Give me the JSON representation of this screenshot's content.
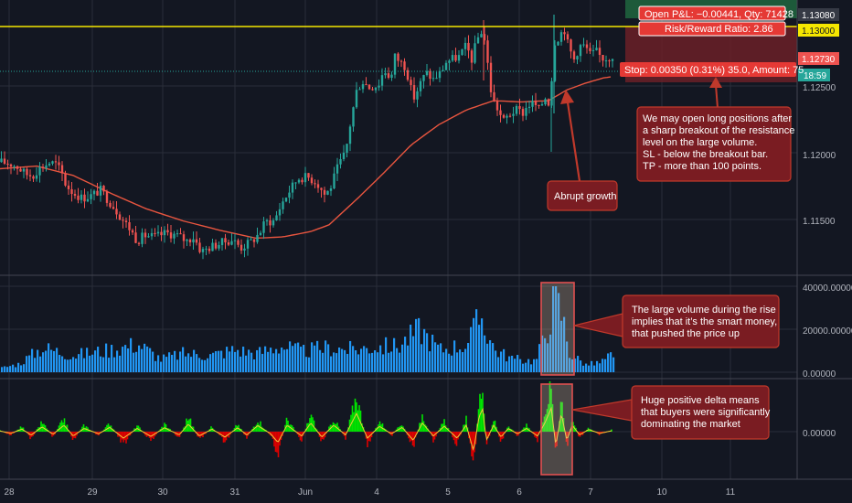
{
  "colors": {
    "background": "#131722",
    "grid": "#2a2e39",
    "up": "#26a69a",
    "down": "#ef5350",
    "ma": "#e8553f",
    "resistance": "#f5e700",
    "volume": "#2196f3",
    "delta_pos": "#00e600",
    "delta_neg": "#e00000",
    "callout_fill": "#7a1c22",
    "callout_stroke": "#c0392b"
  },
  "chart_data": [
    {
      "type": "candlestick",
      "x_labels": [
        "28",
        "29",
        "30",
        "31",
        "Jun",
        "4",
        "5",
        "6",
        "7",
        "10",
        "11"
      ],
      "y_ticks": [
        "1.12500",
        "1.12000",
        "1.11500"
      ],
      "ylim": [
        1.112,
        1.1325
      ],
      "price_labels": {
        "high": "1.13080",
        "resistance": "1.13000",
        "current": "1.12730",
        "timer": "18:59"
      },
      "resistance_level": 1.13,
      "indicator": "moving average",
      "close_path": [
        [
          0,
          1.1193
        ],
        [
          10,
          1.1192
        ],
        [
          18,
          1.119
        ],
        [
          28,
          1.1184
        ],
        [
          36,
          1.1183
        ],
        [
          42,
          1.1188
        ],
        [
          55,
          1.1193
        ],
        [
          62,
          1.1191
        ],
        [
          68,
          1.1184
        ],
        [
          72,
          1.1176
        ],
        [
          80,
          1.117
        ],
        [
          90,
          1.1166
        ],
        [
          100,
          1.1168
        ],
        [
          110,
          1.1172
        ],
        [
          118,
          1.1165
        ],
        [
          126,
          1.1158
        ],
        [
          134,
          1.115
        ],
        [
          142,
          1.1143
        ],
        [
          150,
          1.1134
        ],
        [
          158,
          1.1138
        ],
        [
          170,
          1.1137
        ],
        [
          182,
          1.114
        ],
        [
          194,
          1.1138
        ],
        [
          204,
          1.1134
        ],
        [
          212,
          1.1137
        ],
        [
          220,
          1.1126
        ],
        [
          232,
          1.113
        ],
        [
          244,
          1.1133
        ],
        [
          254,
          1.1135
        ],
        [
          264,
          1.1129
        ],
        [
          276,
          1.1134
        ],
        [
          284,
          1.114
        ],
        [
          290,
          1.1148
        ],
        [
          300,
          1.1149
        ],
        [
          308,
          1.1162
        ],
        [
          318,
          1.1173
        ],
        [
          326,
          1.1181
        ],
        [
          336,
          1.1182
        ],
        [
          346,
          1.1178
        ],
        [
          356,
          1.1168
        ],
        [
          362,
          1.1175
        ],
        [
          370,
          1.119
        ],
        [
          378,
          1.12
        ],
        [
          384,
          1.1225
        ],
        [
          390,
          1.1246
        ],
        [
          396,
          1.1254
        ],
        [
          404,
          1.1249
        ],
        [
          414,
          1.1251
        ],
        [
          420,
          1.1262
        ],
        [
          428,
          1.1256
        ],
        [
          432,
          1.1272
        ],
        [
          438,
          1.1268
        ],
        [
          444,
          1.1264
        ],
        [
          452,
          1.124
        ],
        [
          460,
          1.1252
        ],
        [
          466,
          1.126
        ],
        [
          474,
          1.1255
        ],
        [
          482,
          1.126
        ],
        [
          488,
          1.1268
        ],
        [
          494,
          1.127
        ],
        [
          502,
          1.1272
        ],
        [
          510,
          1.128
        ],
        [
          516,
          1.127
        ],
        [
          522,
          1.1285
        ],
        [
          528,
          1.1293
        ],
        [
          532,
          1.1276
        ],
        [
          536,
          1.125
        ],
        [
          540,
          1.1238
        ],
        [
          546,
          1.1231
        ],
        [
          550,
          1.1223
        ],
        [
          556,
          1.1228
        ],
        [
          564,
          1.1232
        ],
        [
          572,
          1.123
        ],
        [
          578,
          1.1236
        ],
        [
          584,
          1.1237
        ],
        [
          590,
          1.1232
        ],
        [
          596,
          1.1242
        ],
        [
          600,
          1.1238
        ],
        [
          604,
          1.1258
        ],
        [
          608,
          1.1292
        ],
        [
          612,
          1.1283
        ],
        [
          616,
          1.1297
        ],
        [
          620,
          1.1284
        ],
        [
          624,
          1.1276
        ],
        [
          628,
          1.127
        ],
        [
          634,
          1.128
        ],
        [
          640,
          1.128
        ],
        [
          646,
          1.1273
        ],
        [
          652,
          1.1276
        ],
        [
          658,
          1.1271
        ],
        [
          664,
          1.1271
        ],
        [
          670,
          1.1273
        ]
      ],
      "moving_average_path": [
        [
          0,
          1.1188
        ],
        [
          40,
          1.119
        ],
        [
          80,
          1.1183
        ],
        [
          120,
          1.117
        ],
        [
          160,
          1.1158
        ],
        [
          200,
          1.1149
        ],
        [
          240,
          1.1142
        ],
        [
          280,
          1.1136
        ],
        [
          310,
          1.1137
        ],
        [
          340,
          1.1141
        ],
        [
          360,
          1.1146
        ],
        [
          390,
          1.1165
        ],
        [
          420,
          1.1185
        ],
        [
          450,
          1.1206
        ],
        [
          480,
          1.1221
        ],
        [
          510,
          1.1232
        ],
        [
          540,
          1.1239
        ],
        [
          570,
          1.1238
        ],
        [
          600,
          1.1239
        ],
        [
          620,
          1.1247
        ],
        [
          640,
          1.1252
        ],
        [
          660,
          1.1256
        ],
        [
          670,
          1.1257
        ]
      ]
    },
    {
      "type": "bar",
      "name": "volume",
      "y_ticks": [
        "40000.00000",
        "20000.00000",
        "0.00000"
      ],
      "ylim": [
        0,
        40000
      ],
      "anchors": [
        [
          0,
          2200
        ],
        [
          20,
          4500
        ],
        [
          45,
          13000
        ],
        [
          80,
          9000
        ],
        [
          120,
          12000
        ],
        [
          150,
          15000
        ],
        [
          175,
          7000
        ],
        [
          200,
          10000
        ],
        [
          230,
          9000
        ],
        [
          255,
          12000
        ],
        [
          280,
          10000
        ],
        [
          305,
          14000
        ],
        [
          330,
          11000
        ],
        [
          355,
          13000
        ],
        [
          385,
          12000
        ],
        [
          410,
          13500
        ],
        [
          435,
          14000
        ],
        [
          458,
          23000
        ],
        [
          480,
          12000
        ],
        [
          510,
          15000
        ],
        [
          525,
          30000
        ],
        [
          540,
          12000
        ],
        [
          560,
          7000
        ],
        [
          585,
          6000
        ],
        [
          598,
          24000
        ],
        [
          606,
          40000
        ],
        [
          614,
          30000
        ],
        [
          622,
          10000
        ],
        [
          640,
          4000
        ],
        [
          655,
          5000
        ],
        [
          668,
          9000
        ],
        [
          671,
          5000
        ]
      ]
    },
    {
      "type": "area",
      "name": "delta",
      "y_ticks": [
        "0.00000"
      ],
      "anchors": [
        [
          0,
          0.3
        ],
        [
          12,
          -0.8
        ],
        [
          24,
          1.2
        ],
        [
          34,
          -1.6
        ],
        [
          46,
          2.2
        ],
        [
          58,
          -1.2
        ],
        [
          70,
          3.0
        ],
        [
          80,
          -2.0
        ],
        [
          92,
          1.5
        ],
        [
          108,
          -1.0
        ],
        [
          120,
          2.0
        ],
        [
          135,
          -3.0
        ],
        [
          150,
          1.5
        ],
        [
          165,
          -2.2
        ],
        [
          180,
          1.8
        ],
        [
          196,
          -1.5
        ],
        [
          206,
          3.5
        ],
        [
          218,
          -2.0
        ],
        [
          232,
          1.2
        ],
        [
          246,
          -2.5
        ],
        [
          260,
          1.8
        ],
        [
          270,
          -1.5
        ],
        [
          282,
          2.8
        ],
        [
          296,
          -1.0
        ],
        [
          304,
          -5.0
        ],
        [
          314,
          3.0
        ],
        [
          330,
          -2.0
        ],
        [
          340,
          4.0
        ],
        [
          352,
          -2.5
        ],
        [
          365,
          3.0
        ],
        [
          378,
          -1.5
        ],
        [
          390,
          8.5
        ],
        [
          402,
          -3.0
        ],
        [
          415,
          2.5
        ],
        [
          428,
          -1.0
        ],
        [
          440,
          2.0
        ],
        [
          452,
          -4.0
        ],
        [
          462,
          4.0
        ],
        [
          474,
          -2.0
        ],
        [
          486,
          2.5
        ],
        [
          500,
          -3.0
        ],
        [
          510,
          3.0
        ],
        [
          518,
          -9.0
        ],
        [
          524,
          7.0
        ],
        [
          528,
          10.5
        ],
        [
          532,
          -4.0
        ],
        [
          540,
          3.0
        ],
        [
          548,
          -2.5
        ],
        [
          556,
          1.5
        ],
        [
          566,
          -1.0
        ],
        [
          576,
          1.5
        ],
        [
          588,
          -2.0
        ],
        [
          596,
          4.0
        ],
        [
          603,
          11.0
        ],
        [
          608,
          -6.5
        ],
        [
          614,
          8.5
        ],
        [
          620,
          -4.0
        ],
        [
          626,
          3.0
        ],
        [
          634,
          -1.5
        ],
        [
          644,
          1.0
        ],
        [
          656,
          -0.8
        ],
        [
          670,
          0.5
        ]
      ]
    }
  ],
  "position": {
    "pnl": "Open P&L: −0.00441, Qty: 71428",
    "ratio": "Risk/Reward Ratio: 2.86",
    "stop": "Stop: 0.00350 (0.31%) 35.0, Amount: 75"
  },
  "annotations": {
    "breakout_text": [
      "We may open long positions after",
      "a sharp breakout of the resistance",
      "level on the large volume.",
      "SL - below the breakout bar.",
      "TP - more than 100 points."
    ],
    "growth": "Abrupt growth",
    "volume_text": [
      "The large volume during the rise",
      "implies that it’s the smart money,",
      "that pushed the price up"
    ],
    "delta_text": [
      "Huge positive delta means",
      "that buyers were significantly",
      "dominating the market"
    ]
  }
}
